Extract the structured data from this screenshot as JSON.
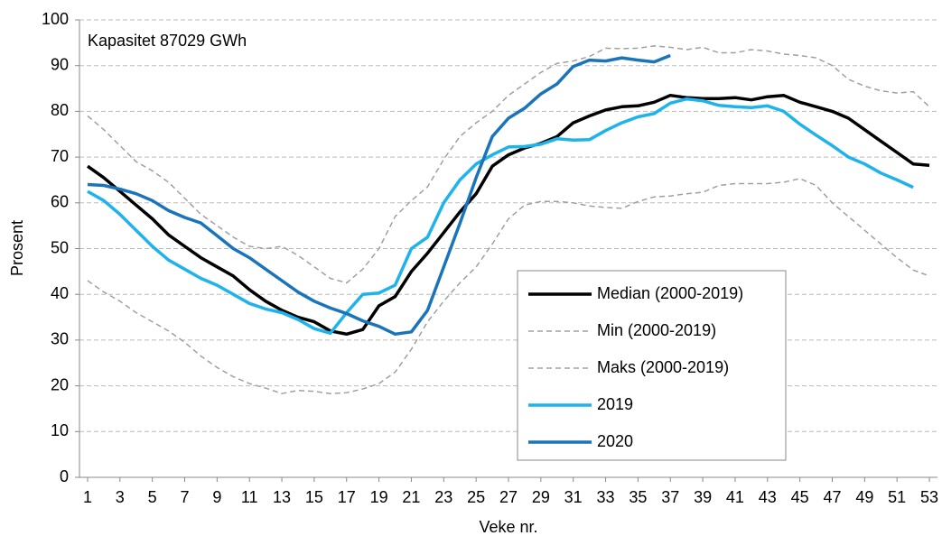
{
  "chart_data": {
    "type": "line",
    "annotation": "Kapasitet 87029 GWh",
    "x_label": "Veke nr.",
    "y_label": "Prosent",
    "x": [
      1,
      2,
      3,
      4,
      5,
      6,
      7,
      8,
      9,
      10,
      11,
      12,
      13,
      14,
      15,
      16,
      17,
      18,
      19,
      20,
      21,
      22,
      23,
      24,
      25,
      26,
      27,
      28,
      29,
      30,
      31,
      32,
      33,
      34,
      35,
      36,
      37,
      38,
      39,
      40,
      41,
      42,
      43,
      44,
      45,
      46,
      47,
      48,
      49,
      50,
      51,
      52,
      53
    ],
    "xlim": [
      0.5,
      53.5
    ],
    "xticks": [
      1,
      3,
      5,
      7,
      9,
      11,
      13,
      15,
      17,
      19,
      21,
      23,
      25,
      27,
      29,
      31,
      33,
      35,
      37,
      39,
      41,
      43,
      45,
      47,
      49,
      51,
      53
    ],
    "ylim": [
      0,
      100
    ],
    "yticks": [
      0,
      10,
      20,
      30,
      40,
      50,
      60,
      70,
      80,
      90,
      100
    ],
    "grid": true,
    "series": [
      {
        "name": "Median (2000-2019)",
        "color": "#000000",
        "dashed": false,
        "values": [
          68,
          65.5,
          62.5,
          59.5,
          56.5,
          53,
          50.5,
          48,
          46,
          44,
          41,
          38.5,
          36.5,
          35,
          34,
          32,
          31.3,
          32.3,
          37.5,
          39.5,
          45,
          49,
          53.5,
          58,
          62,
          68,
          70.5,
          72,
          73,
          74.5,
          77.5,
          79,
          80.3,
          81,
          81.2,
          82,
          83.5,
          83,
          82.8,
          82.8,
          83,
          82.5,
          83.2,
          83.5,
          82,
          81,
          80,
          78.5,
          76,
          73.5,
          71,
          68.5,
          68.2
        ]
      },
      {
        "name": "Min (2000-2019)",
        "color": "#a0a0a0",
        "dashed": true,
        "values": [
          43,
          40.5,
          38.5,
          36,
          34,
          32,
          29.5,
          26.5,
          24,
          22,
          20.5,
          19.5,
          18.3,
          19,
          18.8,
          18.3,
          18.5,
          19.3,
          20.5,
          23,
          28,
          34,
          38.5,
          42.5,
          46,
          51,
          56.5,
          59.5,
          60.3,
          60.3,
          60,
          59.3,
          59,
          58.8,
          60.3,
          61.3,
          61.5,
          62,
          62.3,
          63.8,
          64.2,
          64.2,
          64.2,
          64.5,
          65.3,
          63.8,
          60,
          57,
          54,
          51,
          48,
          45.3,
          44
        ]
      },
      {
        "name": "Maks (2000-2019)",
        "color": "#a0a0a0",
        "dashed": true,
        "values": [
          79,
          76,
          72.5,
          69,
          67,
          64.5,
          61,
          57.5,
          55,
          52.5,
          50.5,
          50,
          50.5,
          48.5,
          46,
          43.5,
          42.5,
          45.5,
          50,
          57,
          60.5,
          63.5,
          69.5,
          74.5,
          77.5,
          80,
          83.5,
          86,
          88.5,
          90.5,
          91,
          92,
          93.8,
          93.7,
          93.8,
          94.3,
          94,
          93.5,
          94,
          92.8,
          92.8,
          93.5,
          93.2,
          92.5,
          92.2,
          91.7,
          90,
          87,
          85.5,
          84.5,
          84,
          84.3,
          81
        ]
      },
      {
        "name": "2019",
        "color": "#1fb3ec",
        "dashed": false,
        "values": [
          62.5,
          60.5,
          57.5,
          54,
          50.5,
          47.5,
          45.5,
          43.5,
          42,
          40,
          38,
          36.8,
          36,
          34.5,
          32.5,
          31.5,
          36,
          40,
          40.3,
          42,
          50,
          52.5,
          60,
          65,
          68.5,
          70.5,
          72.2,
          72.3,
          72.8,
          74,
          73.7,
          73.8,
          75.8,
          77.5,
          78.8,
          79.5,
          81.8,
          82.7,
          82.3,
          81.3,
          81,
          80.8,
          81.2,
          80,
          77.2,
          74.8,
          72.5,
          70,
          68.5,
          66.5,
          65,
          63.4,
          null
        ]
      },
      {
        "name": "2020",
        "color": "#1a74bb",
        "dashed": false,
        "values": [
          64,
          63.8,
          63,
          62,
          60.5,
          58.3,
          56.8,
          55.6,
          52.8,
          50,
          48,
          45.5,
          43,
          40.5,
          38.5,
          37,
          35.8,
          34.2,
          33,
          31.3,
          31.8,
          36.5,
          46,
          55.5,
          65.5,
          74.5,
          78.5,
          80.7,
          83.8,
          86,
          89.8,
          91.2,
          91,
          91.7,
          91.2,
          90.8,
          92.2,
          null,
          null,
          null,
          null,
          null,
          null,
          null,
          null,
          null,
          null,
          null,
          null,
          null,
          null,
          null,
          null
        ]
      }
    ]
  }
}
